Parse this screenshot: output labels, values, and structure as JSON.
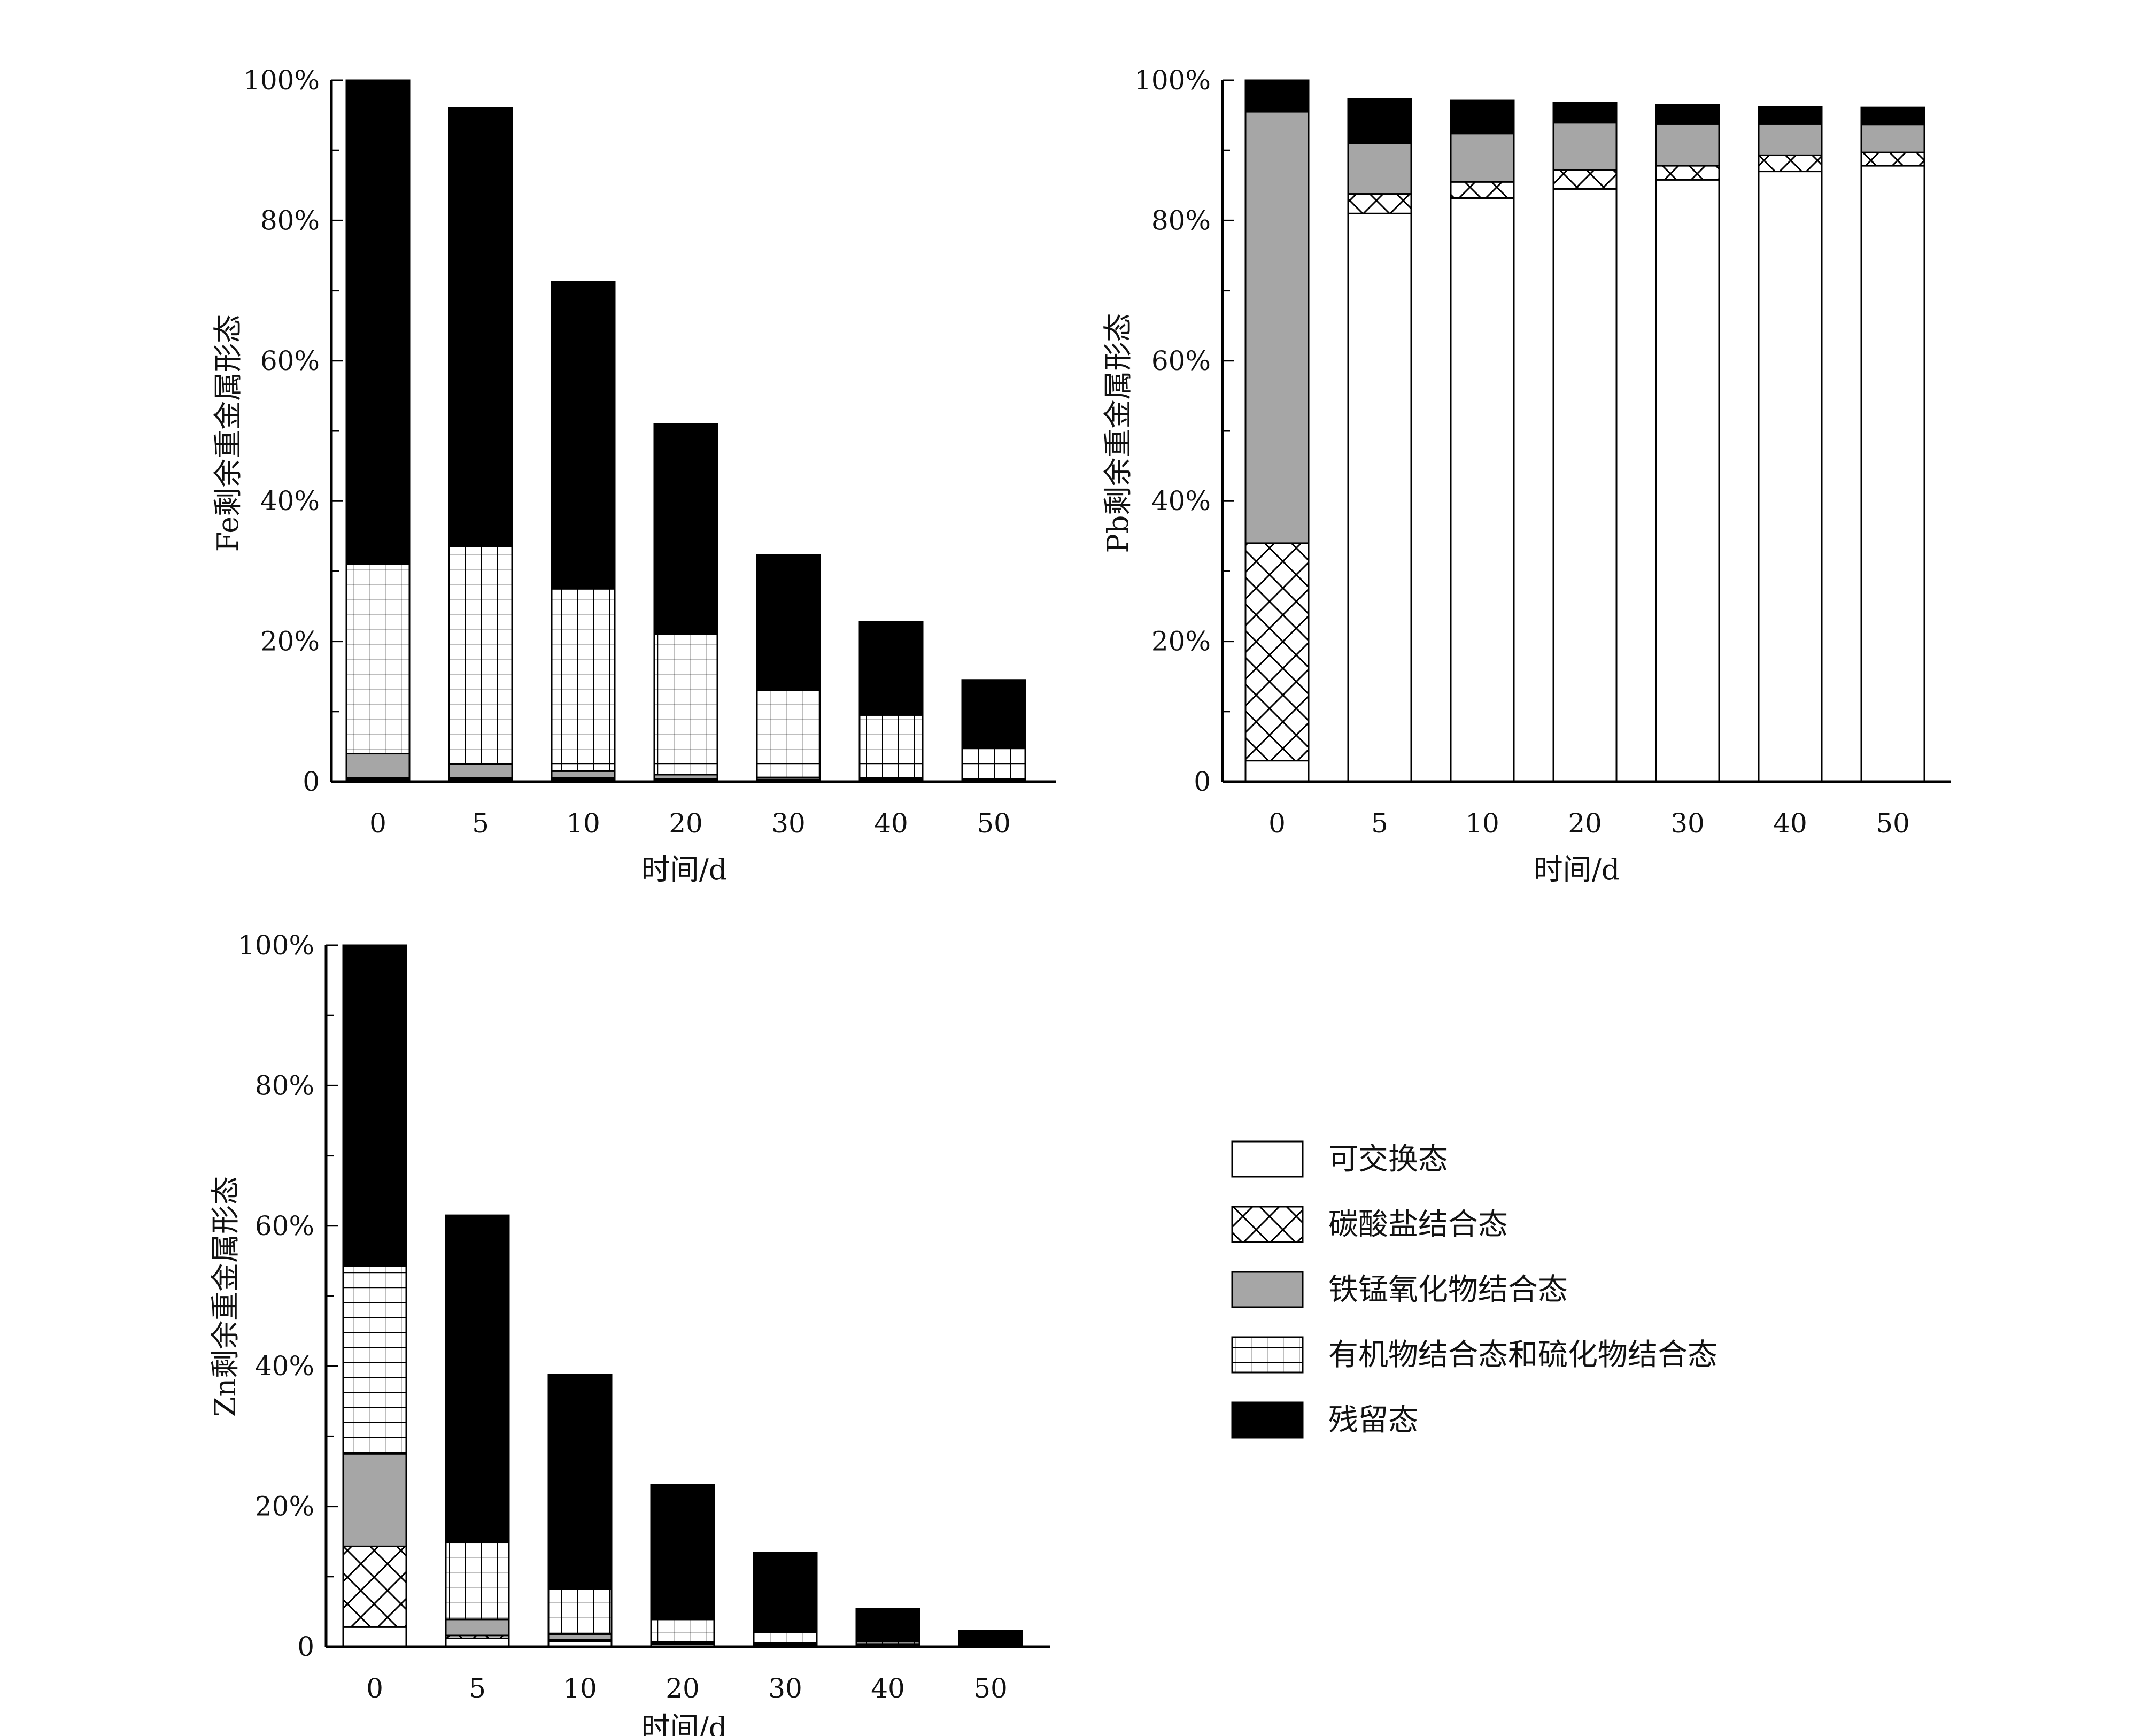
{
  "categories_label": "时间/d",
  "legend": [
    {
      "key": "exchangeable",
      "label": "可交换态",
      "pattern": "white"
    },
    {
      "key": "carbonate",
      "label": "碳酸盐结合态",
      "pattern": "crosshatch"
    },
    {
      "key": "fe_mn_oxide",
      "label": "铁锰氧化物结合态",
      "pattern": "gray"
    },
    {
      "key": "organic_sulfide",
      "label": "有机物结合态和硫化物结合态",
      "pattern": "grid"
    },
    {
      "key": "residual",
      "label": "残留态",
      "pattern": "black"
    }
  ],
  "colors": {
    "gray": "#a6a6a6",
    "black": "#000000",
    "white": "#ffffff"
  },
  "chart_data": [
    {
      "id": "fe",
      "type": "bar",
      "stacked": true,
      "ylabel": "Fe剩余重金属形态",
      "xlabel": "时间/d",
      "categories": [
        "0",
        "5",
        "10",
        "20",
        "30",
        "40",
        "50"
      ],
      "yticks": [
        "0",
        "20%",
        "40%",
        "60%",
        "80%",
        "100%"
      ],
      "ylim": [
        0,
        100
      ],
      "series": [
        {
          "key": "exchangeable",
          "name": "可交换态",
          "values": [
            0.3,
            0.3,
            0.3,
            0.2,
            0.2,
            0.2,
            0.1
          ]
        },
        {
          "key": "carbonate",
          "name": "碳酸盐结合态",
          "values": [
            0.2,
            0.2,
            0.2,
            0.2,
            0.1,
            0.1,
            0.1
          ]
        },
        {
          "key": "fe_mn_oxide",
          "name": "铁锰氧化物结合态",
          "values": [
            3.5,
            2.0,
            1.0,
            0.6,
            0.3,
            0.2,
            0.1
          ]
        },
        {
          "key": "organic_sulfide",
          "name": "有机物结合态和硫化物结合态",
          "values": [
            27.0,
            31.0,
            26.0,
            20.0,
            12.4,
            9.0,
            4.5
          ]
        },
        {
          "key": "residual",
          "name": "残留态",
          "values": [
            69.0,
            62.5,
            43.8,
            30.0,
            19.3,
            13.3,
            9.7
          ]
        }
      ]
    },
    {
      "id": "pb",
      "type": "bar",
      "stacked": true,
      "ylabel": "Pb剩余重金属形态",
      "xlabel": "时间/d",
      "categories": [
        "0",
        "5",
        "10",
        "20",
        "30",
        "40",
        "50"
      ],
      "yticks": [
        "0",
        "20%",
        "40%",
        "60%",
        "80%",
        "100%"
      ],
      "ylim": [
        0,
        100
      ],
      "series": [
        {
          "key": "exchangeable",
          "name": "可交换态",
          "values": [
            3.0,
            81.0,
            83.2,
            84.5,
            85.8,
            87.0,
            87.8
          ]
        },
        {
          "key": "carbonate",
          "name": "碳酸盐结合态",
          "values": [
            31.0,
            2.8,
            2.3,
            2.7,
            2.0,
            2.3,
            1.9
          ]
        },
        {
          "key": "fe_mn_oxide",
          "name": "铁锰氧化物结合态",
          "values": [
            61.5,
            7.2,
            6.9,
            6.8,
            6.0,
            4.5,
            4.0
          ]
        },
        {
          "key": "organic_sulfide",
          "name": "有机物结合态和硫化物结合态",
          "values": [
            0.1,
            0.2,
            0.2,
            0.2,
            0.2,
            0.2,
            0.2
          ]
        },
        {
          "key": "residual",
          "name": "残留态",
          "values": [
            4.4,
            6.1,
            4.5,
            2.6,
            2.5,
            2.2,
            2.2
          ]
        }
      ]
    },
    {
      "id": "zn",
      "type": "bar",
      "stacked": true,
      "ylabel": "Zn剩余重金属形态",
      "xlabel": "时间/d",
      "categories": [
        "0",
        "5",
        "10",
        "20",
        "30",
        "40",
        "50"
      ],
      "yticks": [
        "0",
        "20%",
        "40%",
        "60%",
        "80%",
        "100%"
      ],
      "ylim": [
        0,
        100
      ],
      "series": [
        {
          "key": "exchangeable",
          "name": "可交换态",
          "values": [
            2.8,
            1.2,
            0.8,
            0.4,
            0.3,
            0.2,
            0.1
          ]
        },
        {
          "key": "carbonate",
          "name": "碳酸盐结合态",
          "values": [
            11.5,
            0.4,
            0.2,
            0.1,
            0.1,
            0.1,
            0.1
          ]
        },
        {
          "key": "fe_mn_oxide",
          "name": "铁锰氧化物结合态",
          "values": [
            13.2,
            2.3,
            0.8,
            0.2,
            0.1,
            0.1,
            0.1
          ]
        },
        {
          "key": "organic_sulfide",
          "name": "有机物结合态和硫化物结合态",
          "values": [
            26.8,
            11.0,
            6.4,
            3.2,
            1.6,
            0.3,
            0.1
          ]
        },
        {
          "key": "residual",
          "name": "残留态",
          "values": [
            45.7,
            46.6,
            30.6,
            19.2,
            11.3,
            4.7,
            1.9
          ]
        }
      ]
    }
  ]
}
